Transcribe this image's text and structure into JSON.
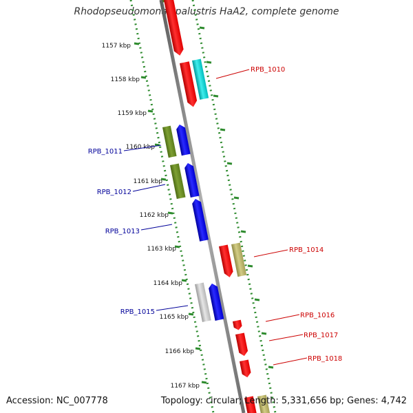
{
  "title": "Rhodopseudomonas palustris HaA2, complete genome",
  "accession_text": "Accession: NC_007778",
  "summary_text": "Topology: circular; Length: 5,331,656 bp; Genes: 4,742",
  "colors": {
    "backbone": "#8a8a8a",
    "ticks": "#2e8b2e",
    "forward_label": "#000099",
    "reverse_label": "#cc0000",
    "red_feature": "#ff0000",
    "blue_feature": "#0000ee",
    "olive_feature": "#6b8e23",
    "khaki_feature": "#bdb76b",
    "cyan_feature": "#00cccc",
    "gray_feature": "#c0c0c0"
  },
  "kbp_labels": [
    "1157 kbp",
    "1158 kbp",
    "1159 kbp",
    "1160 kbp",
    "1161 kbp",
    "1162 kbp",
    "1163 kbp",
    "1164 kbp",
    "1165 kbp",
    "1166 kbp",
    "1167 kbp"
  ],
  "genes": [
    {
      "name": "RPB_1010",
      "strand": "reverse"
    },
    {
      "name": "RPB_1011",
      "strand": "forward"
    },
    {
      "name": "RPB_1012",
      "strand": "forward"
    },
    {
      "name": "RPB_1013",
      "strand": "forward"
    },
    {
      "name": "RPB_1014",
      "strand": "reverse"
    },
    {
      "name": "RPB_1015",
      "strand": "forward"
    },
    {
      "name": "RPB_1016",
      "strand": "reverse"
    },
    {
      "name": "RPB_1017",
      "strand": "reverse"
    },
    {
      "name": "RPB_1018",
      "strand": "reverse"
    }
  ]
}
